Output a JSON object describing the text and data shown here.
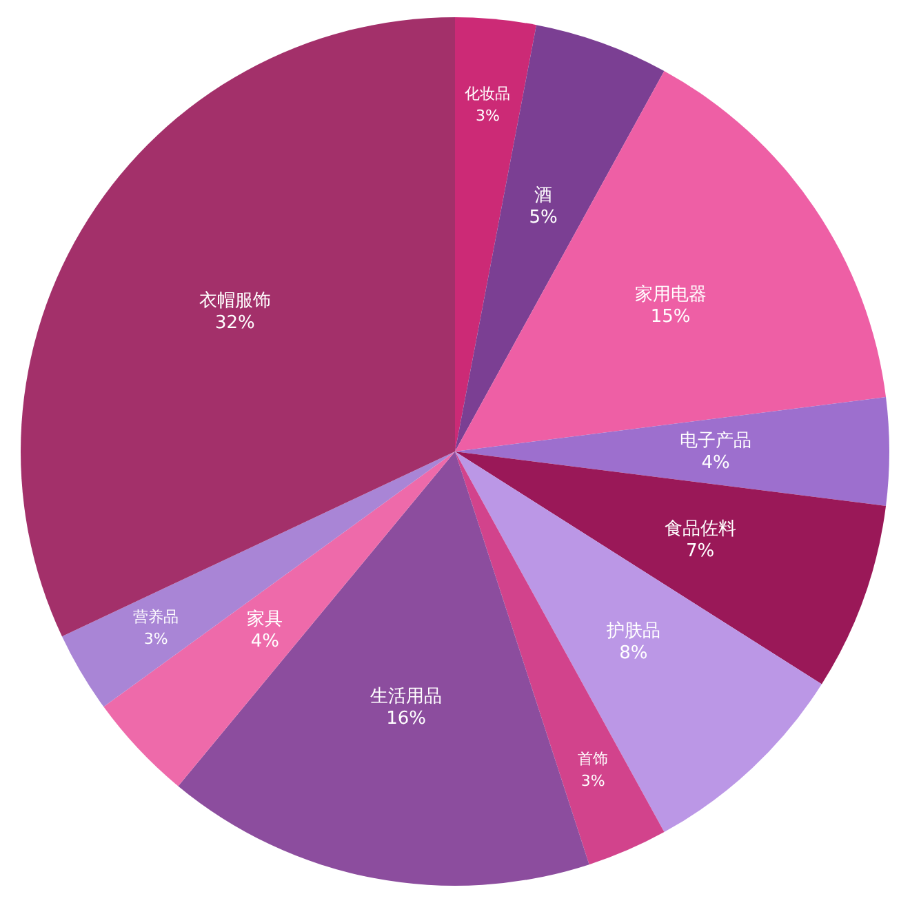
{
  "chart_data": {
    "type": "pie",
    "categories": [
      "化妆品",
      "酒",
      "家用电器",
      "电子产品",
      "食品佐料",
      "护肤品",
      "首饰",
      "生活用品",
      "家具",
      "营养品",
      "衣帽服饰"
    ],
    "values": [
      3,
      5,
      15,
      4,
      7,
      8,
      3,
      16,
      4,
      3,
      32
    ],
    "colors": [
      "#cc2a76",
      "#7b3f93",
      "#ee5fa5",
      "#9d6fce",
      "#9a1858",
      "#bb97e6",
      "#d2438c",
      "#8c4d9e",
      "#ee6aaa",
      "#a985d6",
      "#a3306a"
    ],
    "value_labels": [
      "3%",
      "5%",
      "15%",
      "4%",
      "7%",
      "8%",
      "3%",
      "16%",
      "4%",
      "3%",
      "32%"
    ]
  }
}
